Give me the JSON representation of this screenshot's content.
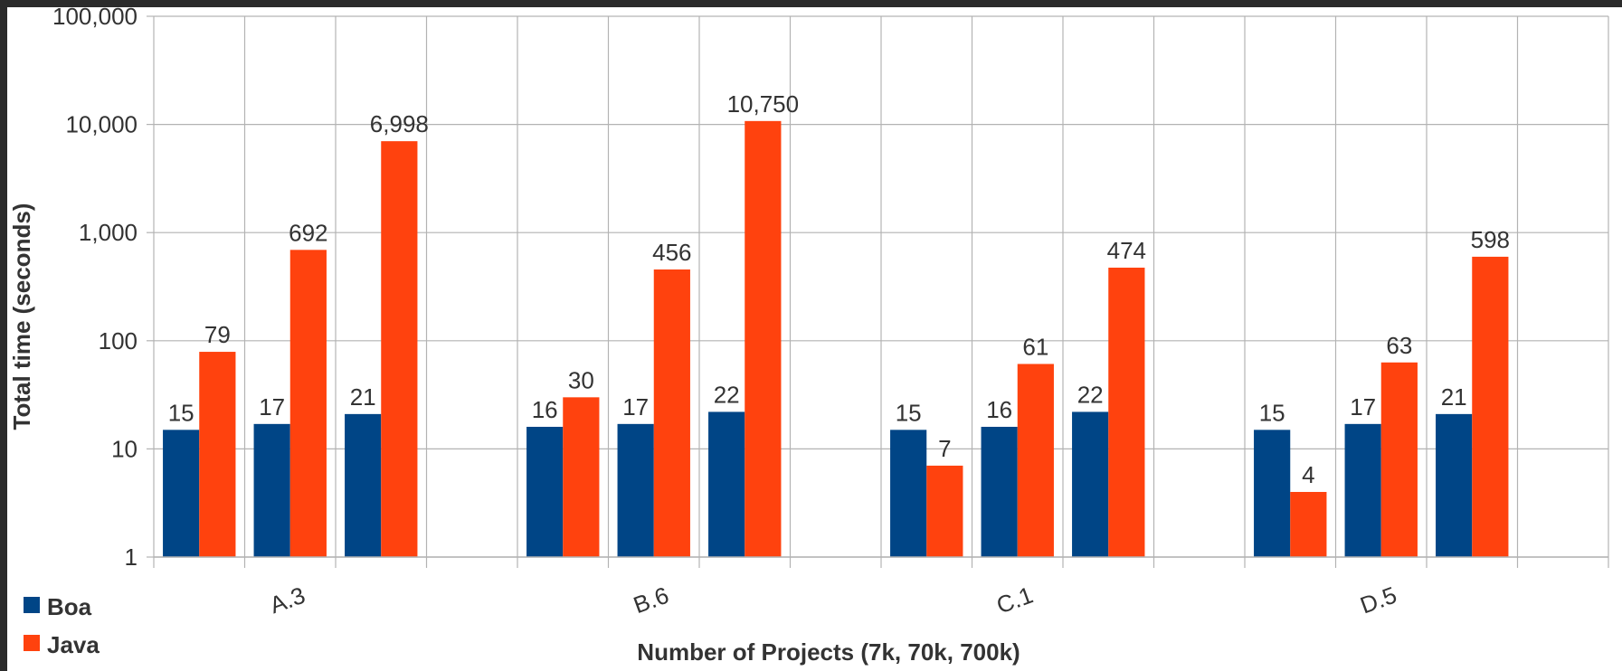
{
  "chart_data": {
    "type": "bar",
    "categories": [
      "A.3",
      "B.6",
      "C.1",
      "D.5"
    ],
    "group_size": 3,
    "series": [
      {
        "name": "Boa",
        "color": "#004586",
        "values": [
          [
            15,
            17,
            21
          ],
          [
            16,
            17,
            22
          ],
          [
            15,
            16,
            22
          ],
          [
            15,
            17,
            21
          ]
        ]
      },
      {
        "name": "Java",
        "color": "#ff420e",
        "values": [
          [
            79,
            692,
            6998
          ],
          [
            30,
            456,
            10750
          ],
          [
            7,
            61,
            474
          ],
          [
            4,
            63,
            598
          ]
        ]
      }
    ],
    "data_labels": {
      "Boa": [
        [
          "15",
          "17",
          "21"
        ],
        [
          "16",
          "17",
          "22"
        ],
        [
          "15",
          "16",
          "22"
        ],
        [
          "15",
          "17",
          "21"
        ]
      ],
      "Java": [
        [
          "79",
          "692",
          "6,998"
        ],
        [
          "30",
          "456",
          "10,750"
        ],
        [
          "7",
          "61",
          "474"
        ],
        [
          "4",
          "63",
          "598"
        ]
      ]
    },
    "y_scale": "log",
    "ylim": [
      1,
      100000
    ],
    "y_ticks": [
      1,
      10,
      100,
      1000,
      10000,
      100000
    ],
    "y_tick_labels": [
      "1",
      "10",
      "100",
      "1,000",
      "10,000",
      "100,000"
    ],
    "xlabel": "Number of Projects (7k, 70k, 700k)",
    "ylabel": "Total time (seconds)",
    "grid": true,
    "legend_position": "bottom-left"
  }
}
